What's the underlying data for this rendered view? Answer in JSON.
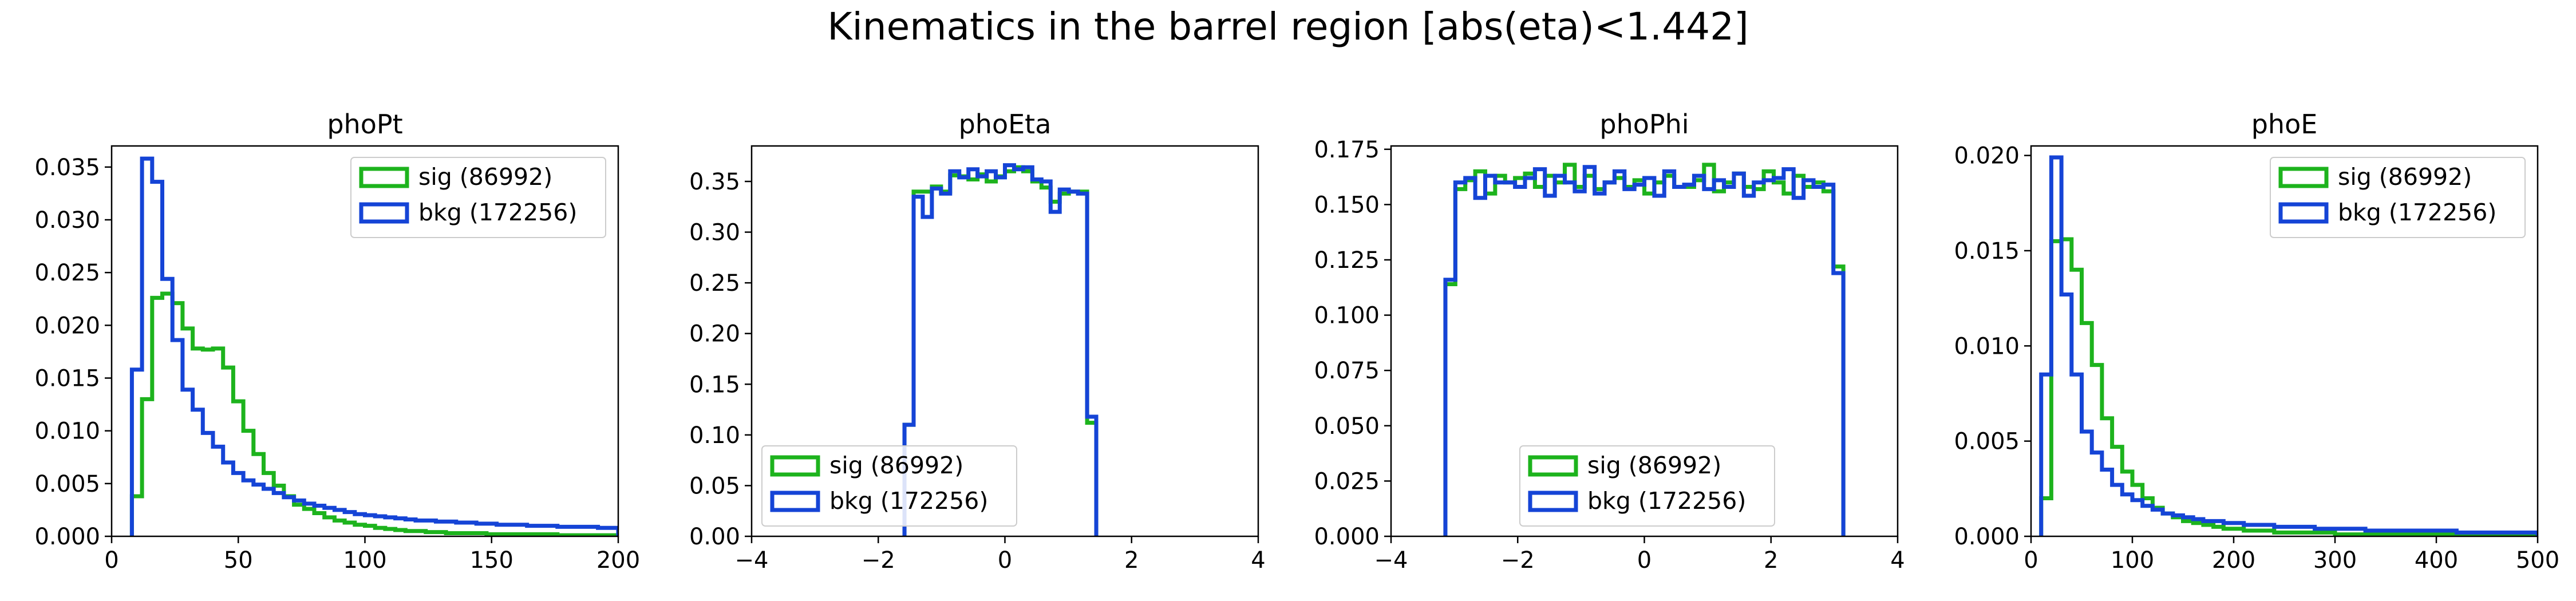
{
  "suptitle": "Kinematics in the barrel region [abs(eta)<1.442]",
  "colors": {
    "sig": "#1db31d",
    "bkg": "#1544d6"
  },
  "chart_data": [
    {
      "type": "step-histogram",
      "title": "phoPt",
      "xlim": [
        0,
        200
      ],
      "ylim": [
        0,
        0.037
      ],
      "xticks": [
        "0",
        "50",
        "100",
        "150",
        "200"
      ],
      "yticks": [
        "0.000",
        "0.005",
        "0.010",
        "0.015",
        "0.020",
        "0.025",
        "0.030",
        "0.035"
      ],
      "legend_loc": "upper right",
      "series": [
        {
          "name": "sig (86992)",
          "color": "#1db31d",
          "bin_width": 4,
          "x0": 8,
          "values": [
            0.0038,
            0.013,
            0.0226,
            0.023,
            0.0221,
            0.0197,
            0.0178,
            0.0177,
            0.0178,
            0.016,
            0.0128,
            0.01,
            0.0078,
            0.006,
            0.0048,
            0.0038,
            0.003,
            0.0026,
            0.0022,
            0.0018,
            0.0015,
            0.0013,
            0.0011,
            0.001,
            0.0008,
            0.0007,
            0.0006,
            0.0005,
            0.0005,
            0.0004,
            0.0004,
            0.0003,
            0.0003,
            0.0003,
            0.0003,
            0.0002,
            0.0002,
            0.0002,
            0.0002,
            0.0002,
            0.0002,
            0.0002,
            0.0001,
            0.0001,
            0.0001,
            0.0001,
            0.0001,
            0.0001
          ]
        },
        {
          "name": "bkg (172256)",
          "color": "#1544d6",
          "bin_width": 4,
          "x0": 8,
          "values": [
            0.0158,
            0.0358,
            0.0336,
            0.0244,
            0.0186,
            0.0139,
            0.012,
            0.0098,
            0.0085,
            0.007,
            0.006,
            0.0053,
            0.0049,
            0.0045,
            0.0041,
            0.0037,
            0.0034,
            0.0031,
            0.0029,
            0.0027,
            0.0025,
            0.0023,
            0.0021,
            0.002,
            0.0019,
            0.0018,
            0.0017,
            0.0016,
            0.0015,
            0.0015,
            0.0014,
            0.0014,
            0.0013,
            0.0013,
            0.0012,
            0.0012,
            0.0011,
            0.0011,
            0.0011,
            0.001,
            0.001,
            0.001,
            0.0009,
            0.0009,
            0.0009,
            0.0009,
            0.0008,
            0.0008
          ]
        }
      ]
    },
    {
      "type": "step-histogram",
      "title": "phoEta",
      "xlim": [
        -4,
        4
      ],
      "ylim": [
        0,
        0.385
      ],
      "xticks": [
        "−4",
        "−2",
        "0",
        "2",
        "4"
      ],
      "yticks": [
        "0.00",
        "0.05",
        "0.10",
        "0.15",
        "0.20",
        "0.25",
        "0.30",
        "0.35"
      ],
      "legend_loc": "lower left",
      "series": [
        {
          "name": "sig (86992)",
          "color": "#1db31d",
          "bin_width": 0.1442,
          "x0": -1.586,
          "values": [
            0.11,
            0.34,
            0.34,
            0.345,
            0.34,
            0.356,
            0.355,
            0.352,
            0.357,
            0.35,
            0.355,
            0.36,
            0.364,
            0.36,
            0.35,
            0.344,
            0.33,
            0.338,
            0.34,
            0.34,
            0.112
          ]
        },
        {
          "name": "bkg (172256)",
          "color": "#1544d6",
          "bin_width": 0.1442,
          "x0": -1.586,
          "values": [
            0.11,
            0.335,
            0.315,
            0.343,
            0.338,
            0.36,
            0.354,
            0.362,
            0.355,
            0.36,
            0.354,
            0.366,
            0.362,
            0.364,
            0.352,
            0.35,
            0.32,
            0.342,
            0.34,
            0.338,
            0.118
          ]
        }
      ]
    },
    {
      "type": "step-histogram",
      "title": "phoPhi",
      "xlim": [
        -4,
        4
      ],
      "ylim": [
        0,
        0.1765
      ],
      "xticks": [
        "−4",
        "−2",
        "0",
        "2",
        "4"
      ],
      "yticks": [
        "0.000",
        "0.025",
        "0.050",
        "0.075",
        "0.100",
        "0.125",
        "0.150",
        "0.175"
      ],
      "legend_loc": "lower center",
      "series": [
        {
          "name": "sig (86992)",
          "color": "#1db31d",
          "bin_width": 0.1571,
          "x0": -3.1416,
          "values": [
            0.114,
            0.157,
            0.161,
            0.165,
            0.155,
            0.163,
            0.16,
            0.162,
            0.164,
            0.158,
            0.163,
            0.16,
            0.168,
            0.158,
            0.163,
            0.157,
            0.16,
            0.162,
            0.158,
            0.161,
            0.155,
            0.16,
            0.163,
            0.158,
            0.158,
            0.161,
            0.168,
            0.156,
            0.16,
            0.164,
            0.158,
            0.157,
            0.165,
            0.16,
            0.155,
            0.163,
            0.158,
            0.16,
            0.156,
            0.122
          ]
        },
        {
          "name": "bkg (172256)",
          "color": "#1544d6",
          "bin_width": 0.1571,
          "x0": -3.1416,
          "values": [
            0.116,
            0.16,
            0.162,
            0.153,
            0.163,
            0.16,
            0.16,
            0.158,
            0.162,
            0.166,
            0.154,
            0.163,
            0.16,
            0.156,
            0.167,
            0.155,
            0.16,
            0.165,
            0.157,
            0.159,
            0.162,
            0.154,
            0.165,
            0.158,
            0.159,
            0.163,
            0.157,
            0.161,
            0.158,
            0.164,
            0.154,
            0.16,
            0.161,
            0.162,
            0.166,
            0.153,
            0.161,
            0.158,
            0.159,
            0.119
          ]
        }
      ]
    },
    {
      "type": "step-histogram",
      "title": "phoE",
      "xlim": [
        0,
        500
      ],
      "ylim": [
        0,
        0.0205
      ],
      "xticks": [
        "0",
        "100",
        "200",
        "300",
        "400",
        "500"
      ],
      "yticks": [
        "0.000",
        "0.005",
        "0.010",
        "0.015",
        "0.020"
      ],
      "legend_loc": "upper right",
      "series": [
        {
          "name": "sig (86992)",
          "color": "#1db31d",
          "bin_width": 10,
          "x0": 10,
          "values": [
            0.002,
            0.0155,
            0.0156,
            0.014,
            0.0112,
            0.009,
            0.0062,
            0.0047,
            0.0034,
            0.0027,
            0.002,
            0.0015,
            0.0012,
            0.001,
            0.0008,
            0.0007,
            0.0006,
            0.0005,
            0.0004,
            0.0004,
            0.0003,
            0.0003,
            0.0003,
            0.0002,
            0.0002,
            0.0002,
            0.0002,
            0.0002,
            0.0002,
            0.0001,
            0.0001,
            0.0001,
            0.0001,
            0.0001,
            0.0001,
            0.0001,
            0.0001,
            0.0001,
            0.0001,
            0.0001,
            0.0001,
            0.0001,
            0.0001,
            0.0001,
            0.0001,
            0.0001,
            0.0001,
            0.0001,
            0.0001
          ]
        },
        {
          "name": "bkg (172256)",
          "color": "#1544d6",
          "bin_width": 10,
          "x0": 10,
          "values": [
            0.0085,
            0.0199,
            0.0127,
            0.0085,
            0.0055,
            0.0044,
            0.0035,
            0.0027,
            0.0022,
            0.0019,
            0.0016,
            0.0014,
            0.0012,
            0.0011,
            0.001,
            0.0009,
            0.0008,
            0.0008,
            0.0007,
            0.0007,
            0.0006,
            0.0006,
            0.0006,
            0.0005,
            0.0005,
            0.0005,
            0.0005,
            0.0004,
            0.0004,
            0.0004,
            0.0004,
            0.0004,
            0.0003,
            0.0003,
            0.0003,
            0.0003,
            0.0003,
            0.0003,
            0.0003,
            0.0003,
            0.0003,
            0.0002,
            0.0002,
            0.0002,
            0.0002,
            0.0002,
            0.0002,
            0.0002,
            0.0002
          ]
        }
      ]
    }
  ]
}
